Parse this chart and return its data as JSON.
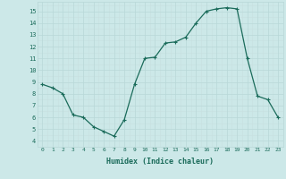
{
  "x": [
    0,
    1,
    2,
    3,
    4,
    5,
    6,
    7,
    8,
    9,
    10,
    11,
    12,
    13,
    14,
    15,
    16,
    17,
    18,
    19,
    20,
    21,
    22,
    23
  ],
  "y": [
    8.8,
    8.5,
    8.0,
    6.2,
    6.0,
    5.2,
    4.8,
    4.4,
    5.8,
    8.8,
    11.0,
    11.1,
    12.3,
    12.4,
    12.8,
    14.0,
    15.0,
    15.2,
    15.3,
    15.2,
    11.0,
    7.8,
    7.5,
    6.0
  ],
  "line_color": "#1a6b5a",
  "marker": "+",
  "bg_color": "#cce8e8",
  "xlabel": "Humidex (Indice chaleur)",
  "xlim": [
    -0.5,
    23.5
  ],
  "ylim": [
    3.5,
    15.8
  ],
  "xtick_labels": [
    "0",
    "1",
    "2",
    "3",
    "4",
    "5",
    "6",
    "7",
    "8",
    "9",
    "10",
    "11",
    "12",
    "13",
    "14",
    "15",
    "16",
    "17",
    "18",
    "19",
    "20",
    "21",
    "22",
    "23"
  ],
  "ytick_vals": [
    4,
    5,
    6,
    7,
    8,
    9,
    10,
    11,
    12,
    13,
    14,
    15
  ],
  "font_color": "#1a6b5a",
  "grid_major_color": "#b8d8d8",
  "grid_minor_color": "#c8e0e0"
}
